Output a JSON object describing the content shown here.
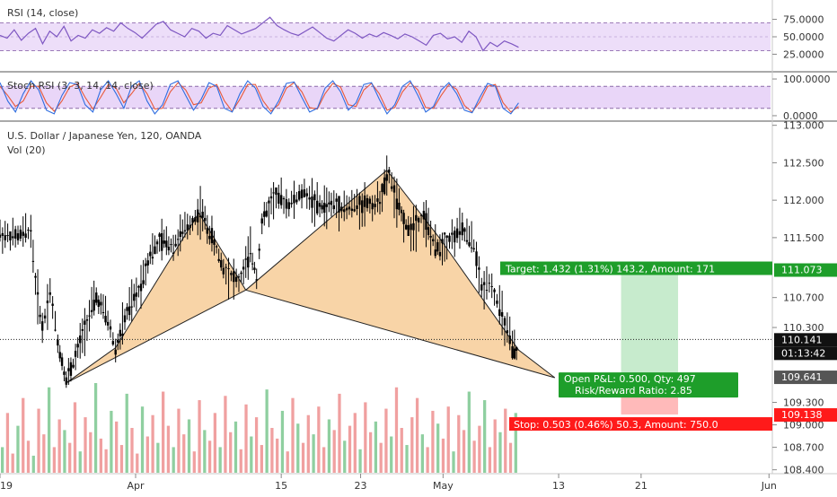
{
  "chart_data": {
    "type": "line",
    "x_ticks": [
      "19",
      "Apr",
      "15",
      "23",
      "May",
      "13",
      "21",
      "Jun"
    ],
    "rsi_panel": {
      "title": "RSI (14, close)",
      "ticks": [
        75,
        50,
        25
      ],
      "tick_labels": [
        "75.0000",
        "50.0000",
        "25.0000"
      ],
      "band": [
        30,
        70
      ],
      "ylim": [
        5,
        95
      ],
      "values": [
        52,
        48,
        60,
        45,
        55,
        62,
        40,
        58,
        50,
        65,
        44,
        52,
        48,
        60,
        55,
        63,
        58,
        70,
        62,
        56,
        48,
        58,
        68,
        72,
        60,
        55,
        50,
        62,
        58,
        48,
        55,
        52,
        66,
        60,
        54,
        58,
        62,
        70,
        78,
        66,
        60,
        55,
        52,
        58,
        64,
        56,
        48,
        44,
        52,
        60,
        55,
        48,
        54,
        50,
        56,
        52,
        47,
        54,
        50,
        44,
        38,
        52,
        55,
        47,
        50,
        42,
        58,
        50,
        30,
        42,
        36,
        44,
        40,
        35
      ]
    },
    "stoch_panel": {
      "title": "Stoch RSI (3, 3, 14, 14, close)",
      "ticks": [
        100,
        0
      ],
      "tick_labels": [
        "100.0000",
        "0.0000"
      ],
      "band": [
        20,
        80
      ],
      "ylim": [
        -5,
        105
      ],
      "k": [
        90,
        40,
        10,
        60,
        95,
        70,
        15,
        5,
        55,
        90,
        85,
        30,
        10,
        70,
        95,
        60,
        20,
        80,
        95,
        40,
        5,
        30,
        85,
        95,
        55,
        15,
        45,
        90,
        80,
        20,
        10,
        60,
        95,
        75,
        25,
        5,
        40,
        88,
        92,
        50,
        10,
        20,
        75,
        95,
        65,
        15,
        35,
        85,
        90,
        45,
        5,
        30,
        80,
        95,
        55,
        10,
        25,
        70,
        90,
        60,
        15,
        8,
        50,
        88,
        80,
        20,
        5,
        35
      ],
      "d": [
        80,
        55,
        25,
        40,
        80,
        80,
        35,
        12,
        40,
        78,
        88,
        50,
        18,
        50,
        85,
        75,
        35,
        60,
        88,
        60,
        18,
        20,
        65,
        90,
        70,
        30,
        35,
        75,
        85,
        40,
        12,
        45,
        85,
        85,
        40,
        12,
        30,
        75,
        90,
        65,
        22,
        18,
        60,
        88,
        78,
        30,
        25,
        70,
        88,
        60,
        15,
        22,
        65,
        90,
        70,
        22,
        20,
        55,
        85,
        72,
        28,
        10,
        38,
        80,
        85,
        35,
        10,
        25
      ]
    },
    "price_panel": {
      "title": "U.S. Dollar / Japanese Yen, 120, OANDA",
      "subtitle": "Vol (20)",
      "y_ticks": [
        113.0,
        112.5,
        112.0,
        111.5,
        110.7,
        110.3,
        109.3,
        109.0,
        108.7,
        108.4
      ],
      "y_tick_labels": [
        "113.000",
        "112.500",
        "112.000",
        "111.500",
        "110.700",
        "110.300",
        "109.300",
        "109.000",
        "108.700",
        "108.400"
      ],
      "ylim": [
        108.36,
        113.02
      ],
      "x_range": [
        0,
        100
      ],
      "x_tick_positions": [
        0,
        17.6,
        36.5,
        46.8,
        57.5,
        72.5,
        83.2,
        99.8
      ],
      "candle_path": [
        [
          0,
          111.55
        ],
        [
          2,
          111.5
        ],
        [
          4,
          111.6
        ],
        [
          4.6,
          110.9
        ],
        [
          5.5,
          110.3
        ],
        [
          6.5,
          110.8
        ],
        [
          7.5,
          110.1
        ],
        [
          8.6,
          109.6
        ],
        [
          9.8,
          109.9
        ],
        [
          11,
          110.3
        ],
        [
          12.5,
          110.7
        ],
        [
          14,
          110.4
        ],
        [
          15,
          110.0
        ],
        [
          16.5,
          110.5
        ],
        [
          18,
          110.8
        ],
        [
          19.5,
          111.3
        ],
        [
          21,
          111.45
        ],
        [
          22.5,
          111.4
        ],
        [
          24,
          111.6
        ],
        [
          26,
          111.85
        ],
        [
          27.5,
          111.5
        ],
        [
          29,
          111.1
        ],
        [
          31,
          110.9
        ],
        [
          32.5,
          111.3
        ],
        [
          33.3,
          111.0
        ],
        [
          34,
          111.7
        ],
        [
          35.5,
          112.05
        ],
        [
          37.5,
          111.95
        ],
        [
          39.5,
          112.1
        ],
        [
          41.5,
          111.9
        ],
        [
          43,
          111.95
        ],
        [
          45,
          111.9
        ],
        [
          47,
          111.95
        ],
        [
          49,
          111.95
        ],
        [
          50.5,
          112.35
        ],
        [
          51.5,
          111.95
        ],
        [
          53,
          111.6
        ],
        [
          55,
          111.8
        ],
        [
          56.5,
          111.35
        ],
        [
          58,
          111.45
        ],
        [
          60,
          111.6
        ],
        [
          61.5,
          111.4
        ],
        [
          62.5,
          110.8
        ],
        [
          63.5,
          110.95
        ],
        [
          64.5,
          110.65
        ],
        [
          65.5,
          110.35
        ],
        [
          66.5,
          110.0
        ],
        [
          67.3,
          109.95
        ]
      ],
      "volume": [
        12,
        28,
        9,
        22,
        35,
        15,
        8,
        30,
        18,
        40,
        12,
        25,
        20,
        14,
        33,
        10,
        26,
        19,
        42,
        16,
        11,
        29,
        24,
        13,
        37,
        21,
        9,
        31,
        17,
        27,
        14,
        38,
        22,
        12,
        30,
        18,
        25,
        10,
        34,
        20,
        15,
        28,
        12,
        36,
        19,
        24,
        11,
        32,
        17,
        26,
        13,
        39,
        21,
        16,
        29,
        10,
        35,
        23,
        14,
        27,
        18,
        31,
        12,
        25,
        20,
        37,
        15,
        22,
        28,
        11,
        33,
        19,
        24,
        14,
        30,
        17,
        40,
        21,
        13,
        26,
        35,
        18,
        12,
        29,
        23,
        16,
        31,
        10,
        27,
        20,
        38,
        15,
        22,
        34,
        12,
        25,
        19,
        30,
        14,
        28
      ],
      "current_price": 110.141,
      "current_price_label": "110.141",
      "countdown": "01:13:42",
      "patterns": [
        {
          "points": [
            [
              8.6,
              109.56
            ],
            [
              15.0,
              110.03
            ],
            [
              25.8,
              111.83
            ],
            [
              31.9,
              110.8
            ]
          ]
        },
        {
          "points": [
            [
              31.9,
              110.8
            ],
            [
              50.2,
              112.4
            ],
            [
              57.0,
              111.5
            ],
            [
              67.3,
              110.0
            ],
            [
              72.0,
              109.63
            ]
          ]
        }
      ],
      "position": {
        "entry": 109.641,
        "target": 111.073,
        "stop": 109.138,
        "x_start": 80.6,
        "x_end": 88.0,
        "entry_label": "109.641",
        "target_axis_label": "111.073",
        "stop_axis_label": "109.138",
        "target_text": "Target: 1.432 (1.31%) 143.2, Amount: 171",
        "pnl_text": "Open P&L: 0.500, Qty: 497",
        "rr_text": "Risk/Reward Ratio: 2.85",
        "stop_text": "Stop: 0.503 (0.46%) 50.3, Amount: 750.0"
      }
    },
    "colors": {
      "rsi_line": "#7e57c2",
      "band_fill": "#e1c8f5",
      "pattern_fill": "#f6c58a",
      "candle": "#000000",
      "vol_up": "#8fcfa0",
      "vol_down": "#f0a0a0",
      "target_fill": "#b9e6c0",
      "stop_fill": "#ffb3b3",
      "target_label": "#1e9e2a",
      "stop_label": "#ff1a1a",
      "stoch_k": "#2f6de0",
      "stoch_d": "#e8593a"
    }
  }
}
